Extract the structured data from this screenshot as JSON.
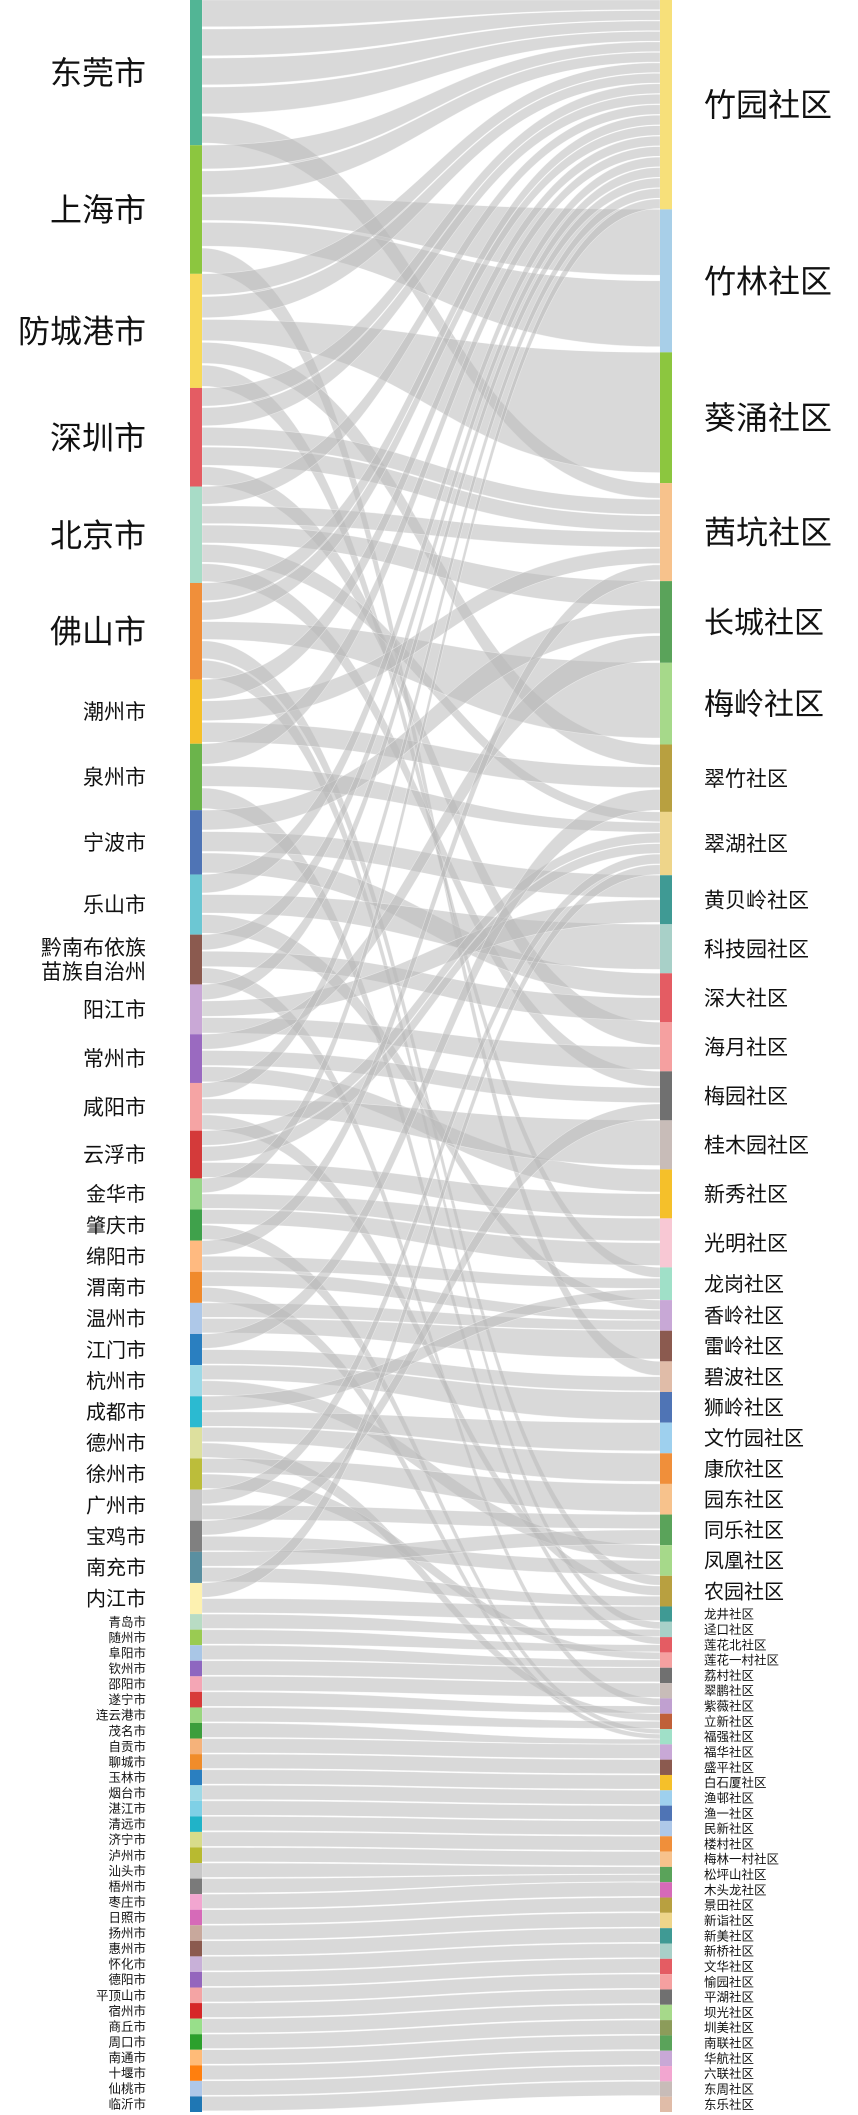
{
  "chart_data": {
    "type": "sankey",
    "link_color": "#b9b9b9",
    "sources": [
      {
        "name": "东莞市",
        "weight": 140,
        "color": "#52b595"
      },
      {
        "name": "上海市",
        "weight": 124,
        "color": "#8cc63f"
      },
      {
        "name": "防城港市",
        "weight": 110,
        "color": "#f7d95a"
      },
      {
        "name": "深圳市",
        "weight": 95,
        "color": "#e45c63"
      },
      {
        "name": "北京市",
        "weight": 93,
        "color": "#a8dcc7"
      },
      {
        "name": "佛山市",
        "weight": 93,
        "color": "#f08f3a"
      },
      {
        "name": "潮州市",
        "weight": 62,
        "color": "#f5c02a"
      },
      {
        "name": "泉州市",
        "weight": 64,
        "color": "#6bb44b"
      },
      {
        "name": "宁波市",
        "weight": 62,
        "color": "#4f74b5"
      },
      {
        "name": "乐山市",
        "weight": 58,
        "color": "#6cc7d3"
      },
      {
        "name": "黔南布依族\n苗族自治州",
        "weight": 48,
        "color": "#8b5a4f"
      },
      {
        "name": "阳江市",
        "weight": 48,
        "color": "#c9a8d6"
      },
      {
        "name": "常州市",
        "weight": 47,
        "color": "#9a6ac0"
      },
      {
        "name": "咸阳市",
        "weight": 46,
        "color": "#f5a4a4"
      },
      {
        "name": "云浮市",
        "weight": 46,
        "color": "#d43a3a"
      },
      {
        "name": "金华市",
        "weight": 30,
        "color": "#99d68a"
      },
      {
        "name": "肇庆市",
        "weight": 30,
        "color": "#3fa14b"
      },
      {
        "name": "绵阳市",
        "weight": 30,
        "color": "#ffba80"
      },
      {
        "name": "渭南市",
        "weight": 30,
        "color": "#f08a2c"
      },
      {
        "name": "温州市",
        "weight": 30,
        "color": "#aec8e8"
      },
      {
        "name": "江门市",
        "weight": 30,
        "color": "#2a7fc0"
      },
      {
        "name": "杭州市",
        "weight": 30,
        "color": "#9ed9e6"
      },
      {
        "name": "成都市",
        "weight": 30,
        "color": "#2bbad1"
      },
      {
        "name": "德州市",
        "weight": 30,
        "color": "#dde09e"
      },
      {
        "name": "徐州市",
        "weight": 30,
        "color": "#bcbd3a"
      },
      {
        "name": "广州市",
        "weight": 30,
        "color": "#c7c7c7"
      },
      {
        "name": "宝鸡市",
        "weight": 30,
        "color": "#808080"
      },
      {
        "name": "南充市",
        "weight": 30,
        "color": "#5a8fa0"
      },
      {
        "name": "内江市",
        "weight": 30,
        "color": "#fdf1b0"
      },
      {
        "name": "青岛市",
        "weight": 15,
        "color": "#b8dcc4"
      },
      {
        "name": "随州市",
        "weight": 15,
        "color": "#9acb52"
      },
      {
        "name": "阜阳市",
        "weight": 15,
        "color": "#a9c6e6"
      },
      {
        "name": "钦州市",
        "weight": 15,
        "color": "#8e67c0"
      },
      {
        "name": "邵阳市",
        "weight": 15,
        "color": "#f4a6b5"
      },
      {
        "name": "遂宁市",
        "weight": 15,
        "color": "#d83a3a"
      },
      {
        "name": "连云港市",
        "weight": 15,
        "color": "#99d680"
      },
      {
        "name": "茂名市",
        "weight": 15,
        "color": "#3c9e3c"
      },
      {
        "name": "自贡市",
        "weight": 15,
        "color": "#f5b27a"
      },
      {
        "name": "聊城市",
        "weight": 15,
        "color": "#f08c2a"
      },
      {
        "name": "玉林市",
        "weight": 15,
        "color": "#2a7fc0"
      },
      {
        "name": "烟台市",
        "weight": 15,
        "color": "#9ed9e6"
      },
      {
        "name": "湛江市",
        "weight": 15,
        "color": "#7fd0e6"
      },
      {
        "name": "清远市",
        "weight": 15,
        "color": "#20b3c8"
      },
      {
        "name": "济宁市",
        "weight": 15,
        "color": "#d8dc8a"
      },
      {
        "name": "泸州市",
        "weight": 15,
        "color": "#b8ba30"
      },
      {
        "name": "汕头市",
        "weight": 15,
        "color": "#c8c8c8"
      },
      {
        "name": "梧州市",
        "weight": 15,
        "color": "#7a7a7a"
      },
      {
        "name": "枣庄市",
        "weight": 15,
        "color": "#f2a6d0"
      },
      {
        "name": "日照市",
        "weight": 15,
        "color": "#d66ab8"
      },
      {
        "name": "扬州市",
        "weight": 15,
        "color": "#c8a89c"
      },
      {
        "name": "惠州市",
        "weight": 15,
        "color": "#8b5a4f"
      },
      {
        "name": "怀化市",
        "weight": 15,
        "color": "#c8b0d8"
      },
      {
        "name": "德阳市",
        "weight": 15,
        "color": "#9466bd"
      },
      {
        "name": "平顶山市",
        "weight": 15,
        "color": "#f4a4a4"
      },
      {
        "name": "宿州市",
        "weight": 15,
        "color": "#d62728"
      },
      {
        "name": "商丘市",
        "weight": 15,
        "color": "#98df8a"
      },
      {
        "name": "周口市",
        "weight": 15,
        "color": "#2ca02c"
      },
      {
        "name": "南通市",
        "weight": 15,
        "color": "#ffbb78"
      },
      {
        "name": "十堰市",
        "weight": 15,
        "color": "#ff7f0e"
      },
      {
        "name": "仙桃市",
        "weight": 15,
        "color": "#aec7e8"
      },
      {
        "name": "临沂市",
        "weight": 15,
        "color": "#1f77b4"
      }
    ],
    "targets": [
      {
        "name": "竹园社区",
        "weight": 205,
        "color": "#f7e07a"
      },
      {
        "name": "竹林社区",
        "weight": 140,
        "color": "#a8cfe8"
      },
      {
        "name": "葵涌社区",
        "weight": 128,
        "color": "#8cc63f"
      },
      {
        "name": "茜坑社区",
        "weight": 96,
        "color": "#f7c28c"
      },
      {
        "name": "长城社区",
        "weight": 80,
        "color": "#5aa35a"
      },
      {
        "name": "梅岭社区",
        "weight": 80,
        "color": "#a6d98a"
      },
      {
        "name": "翠竹社区",
        "weight": 66,
        "color": "#b8a040"
      },
      {
        "name": "翠湖社区",
        "weight": 62,
        "color": "#eed58a"
      },
      {
        "name": "黄贝岭社区",
        "weight": 48,
        "color": "#3f9a94"
      },
      {
        "name": "科技园社区",
        "weight": 48,
        "color": "#a8d0c8"
      },
      {
        "name": "深大社区",
        "weight": 48,
        "color": "#e45c63"
      },
      {
        "name": "海月社区",
        "weight": 48,
        "color": "#f5a0a0"
      },
      {
        "name": "梅园社区",
        "weight": 48,
        "color": "#707070"
      },
      {
        "name": "桂木园社区",
        "weight": 48,
        "color": "#c8bcb8"
      },
      {
        "name": "新秀社区",
        "weight": 48,
        "color": "#f5c02a"
      },
      {
        "name": "光明社区",
        "weight": 48,
        "color": "#f8c8d4"
      },
      {
        "name": "龙岗社区",
        "weight": 32,
        "color": "#a0e0c8"
      },
      {
        "name": "香岭社区",
        "weight": 30,
        "color": "#c8a8d6"
      },
      {
        "name": "雷岭社区",
        "weight": 30,
        "color": "#8b5a4f"
      },
      {
        "name": "碧波社区",
        "weight": 30,
        "color": "#e0bca8"
      },
      {
        "name": "狮岭社区",
        "weight": 30,
        "color": "#4f74b5"
      },
      {
        "name": "文竹园社区",
        "weight": 30,
        "color": "#9ed0ee"
      },
      {
        "name": "康欣社区",
        "weight": 30,
        "color": "#f08f3a"
      },
      {
        "name": "园东社区",
        "weight": 30,
        "color": "#f7c28c"
      },
      {
        "name": "同乐社区",
        "weight": 30,
        "color": "#5aa35a"
      },
      {
        "name": "凤凰社区",
        "weight": 30,
        "color": "#a6d98a"
      },
      {
        "name": "农园社区",
        "weight": 30,
        "color": "#b8a040"
      },
      {
        "name": "龙井社区",
        "weight": 15,
        "color": "#3f9a94"
      },
      {
        "name": "迳口社区",
        "weight": 15,
        "color": "#a8d0c8"
      },
      {
        "name": "莲花北社区",
        "weight": 15,
        "color": "#e45c63"
      },
      {
        "name": "莲花一村社区",
        "weight": 15,
        "color": "#f5a0a0"
      },
      {
        "name": "荔村社区",
        "weight": 15,
        "color": "#707070"
      },
      {
        "name": "翠鹏社区",
        "weight": 15,
        "color": "#c8bcb8"
      },
      {
        "name": "紫薇社区",
        "weight": 15,
        "color": "#c0a0d0"
      },
      {
        "name": "立新社区",
        "weight": 15,
        "color": "#c0603a"
      },
      {
        "name": "福强社区",
        "weight": 15,
        "color": "#a0e0c8"
      },
      {
        "name": "福华社区",
        "weight": 15,
        "color": "#c8a8d6"
      },
      {
        "name": "盛平社区",
        "weight": 15,
        "color": "#8b5a4f"
      },
      {
        "name": "白石厦社区",
        "weight": 15,
        "color": "#f5c02a"
      },
      {
        "name": "渔邨社区",
        "weight": 15,
        "color": "#9ed0ee"
      },
      {
        "name": "渔一社区",
        "weight": 15,
        "color": "#4f74b5"
      },
      {
        "name": "民新社区",
        "weight": 15,
        "color": "#aec8e8"
      },
      {
        "name": "楼村社区",
        "weight": 15,
        "color": "#f08f3a"
      },
      {
        "name": "梅林一村社区",
        "weight": 15,
        "color": "#f7c28c"
      },
      {
        "name": "松坪山社区",
        "weight": 15,
        "color": "#5aa35a"
      },
      {
        "name": "木头龙社区",
        "weight": 15,
        "color": "#d66ab8"
      },
      {
        "name": "景田社区",
        "weight": 15,
        "color": "#b8a040"
      },
      {
        "name": "新诣社区",
        "weight": 15,
        "color": "#eed58a"
      },
      {
        "name": "新美社区",
        "weight": 15,
        "color": "#3f9a94"
      },
      {
        "name": "新桥社区",
        "weight": 15,
        "color": "#a8d0c8"
      },
      {
        "name": "文华社区",
        "weight": 15,
        "color": "#e45c63"
      },
      {
        "name": "愉园社区",
        "weight": 15,
        "color": "#f5a0a0"
      },
      {
        "name": "平湖社区",
        "weight": 15,
        "color": "#707070"
      },
      {
        "name": "坝光社区",
        "weight": 15,
        "color": "#a6d98a"
      },
      {
        "name": "圳美社区",
        "weight": 15,
        "color": "#8c9c5a"
      },
      {
        "name": "南联社区",
        "weight": 15,
        "color": "#5aa35a"
      },
      {
        "name": "华航社区",
        "weight": 15,
        "color": "#c8a8d6"
      },
      {
        "name": "六联社区",
        "weight": 15,
        "color": "#f2a6d0"
      },
      {
        "name": "东周社区",
        "weight": 15,
        "color": "#c8bcb8"
      },
      {
        "name": "东乐社区",
        "weight": 15,
        "color": "#e0bca8"
      }
    ]
  }
}
